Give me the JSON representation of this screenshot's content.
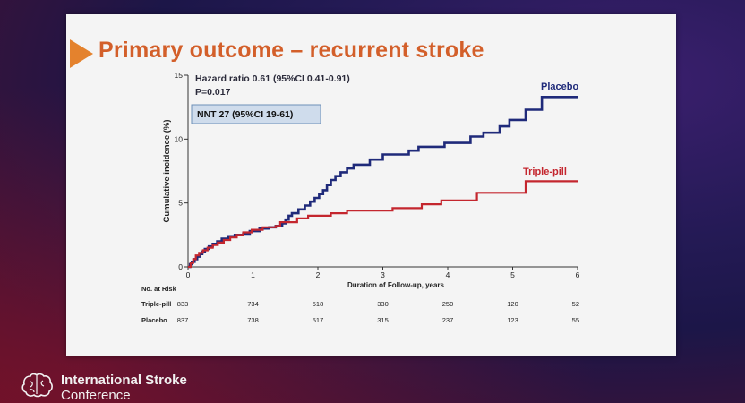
{
  "slide": {
    "title": "Primary outcome – recurrent stroke"
  },
  "annotations": {
    "hazard_ratio": "Hazard ratio 0.61 (95%CI 0.41-0.91)",
    "p_value": "P=0.017",
    "nnt": "NNT 27 (95%CI 19-61)"
  },
  "risk_table": {
    "header": "No. at Risk",
    "rows": [
      {
        "label": "Triple-pill",
        "values": [
          "833",
          "734",
          "518",
          "330",
          "250",
          "120",
          "52"
        ]
      },
      {
        "label": "Placebo",
        "values": [
          "837",
          "738",
          "517",
          "315",
          "237",
          "123",
          "55"
        ]
      }
    ]
  },
  "footer": {
    "line1": "International Stroke",
    "line2": "Conference"
  },
  "colors": {
    "placebo": "#1f2a7a",
    "triple_pill": "#c4262e",
    "title": "#d35f2a",
    "arrow": "#e4822d"
  },
  "chart_data": {
    "type": "line",
    "step": true,
    "title": "Primary outcome – recurrent stroke",
    "xlabel": "Duration of Follow-up, years",
    "ylabel": "Cumulative incidence (%)",
    "xlim": [
      0,
      6
    ],
    "ylim": [
      0,
      15
    ],
    "xticks": [
      "0",
      "1",
      "2",
      "3",
      "4",
      "5",
      "6"
    ],
    "yticks": [
      "0",
      "5",
      "10",
      "15"
    ],
    "grid": false,
    "series": [
      {
        "name": "Placebo",
        "color": "#1f2a7a",
        "points": [
          [
            0,
            0
          ],
          [
            0.03,
            0.2
          ],
          [
            0.06,
            0.4
          ],
          [
            0.1,
            0.6
          ],
          [
            0.14,
            0.8
          ],
          [
            0.18,
            1.0
          ],
          [
            0.22,
            1.2
          ],
          [
            0.26,
            1.4
          ],
          [
            0.32,
            1.6
          ],
          [
            0.38,
            1.8
          ],
          [
            0.45,
            2.0
          ],
          [
            0.52,
            2.2
          ],
          [
            0.62,
            2.4
          ],
          [
            0.72,
            2.5
          ],
          [
            0.85,
            2.6
          ],
          [
            0.95,
            2.8
          ],
          [
            1.1,
            3.0
          ],
          [
            1.25,
            3.1
          ],
          [
            1.35,
            3.2
          ],
          [
            1.45,
            3.4
          ],
          [
            1.5,
            3.7
          ],
          [
            1.55,
            4.0
          ],
          [
            1.6,
            4.2
          ],
          [
            1.7,
            4.5
          ],
          [
            1.8,
            4.8
          ],
          [
            1.88,
            5.1
          ],
          [
            1.95,
            5.4
          ],
          [
            2.02,
            5.7
          ],
          [
            2.08,
            6.0
          ],
          [
            2.14,
            6.4
          ],
          [
            2.2,
            6.8
          ],
          [
            2.27,
            7.1
          ],
          [
            2.35,
            7.4
          ],
          [
            2.45,
            7.7
          ],
          [
            2.55,
            8.0
          ],
          [
            2.8,
            8.4
          ],
          [
            3.0,
            8.8
          ],
          [
            3.4,
            9.1
          ],
          [
            3.55,
            9.4
          ],
          [
            3.95,
            9.7
          ],
          [
            4.35,
            10.2
          ],
          [
            4.55,
            10.5
          ],
          [
            4.8,
            11.0
          ],
          [
            4.95,
            11.5
          ],
          [
            5.2,
            12.3
          ],
          [
            5.45,
            13.3
          ],
          [
            6.0,
            13.3
          ]
        ]
      },
      {
        "name": "Triple-pill",
        "color": "#c4262e",
        "points": [
          [
            0,
            0
          ],
          [
            0.04,
            0.3
          ],
          [
            0.08,
            0.6
          ],
          [
            0.12,
            0.9
          ],
          [
            0.17,
            1.1
          ],
          [
            0.23,
            1.3
          ],
          [
            0.3,
            1.5
          ],
          [
            0.38,
            1.7
          ],
          [
            0.46,
            1.9
          ],
          [
            0.55,
            2.1
          ],
          [
            0.65,
            2.3
          ],
          [
            0.75,
            2.5
          ],
          [
            0.85,
            2.7
          ],
          [
            0.98,
            2.9
          ],
          [
            1.15,
            3.1
          ],
          [
            1.35,
            3.2
          ],
          [
            1.42,
            3.5
          ],
          [
            1.68,
            3.8
          ],
          [
            1.85,
            4.0
          ],
          [
            2.2,
            4.2
          ],
          [
            2.45,
            4.4
          ],
          [
            3.15,
            4.6
          ],
          [
            3.6,
            4.9
          ],
          [
            3.9,
            5.2
          ],
          [
            4.45,
            5.8
          ],
          [
            5.2,
            6.7
          ],
          [
            6.0,
            6.7
          ]
        ]
      }
    ]
  }
}
